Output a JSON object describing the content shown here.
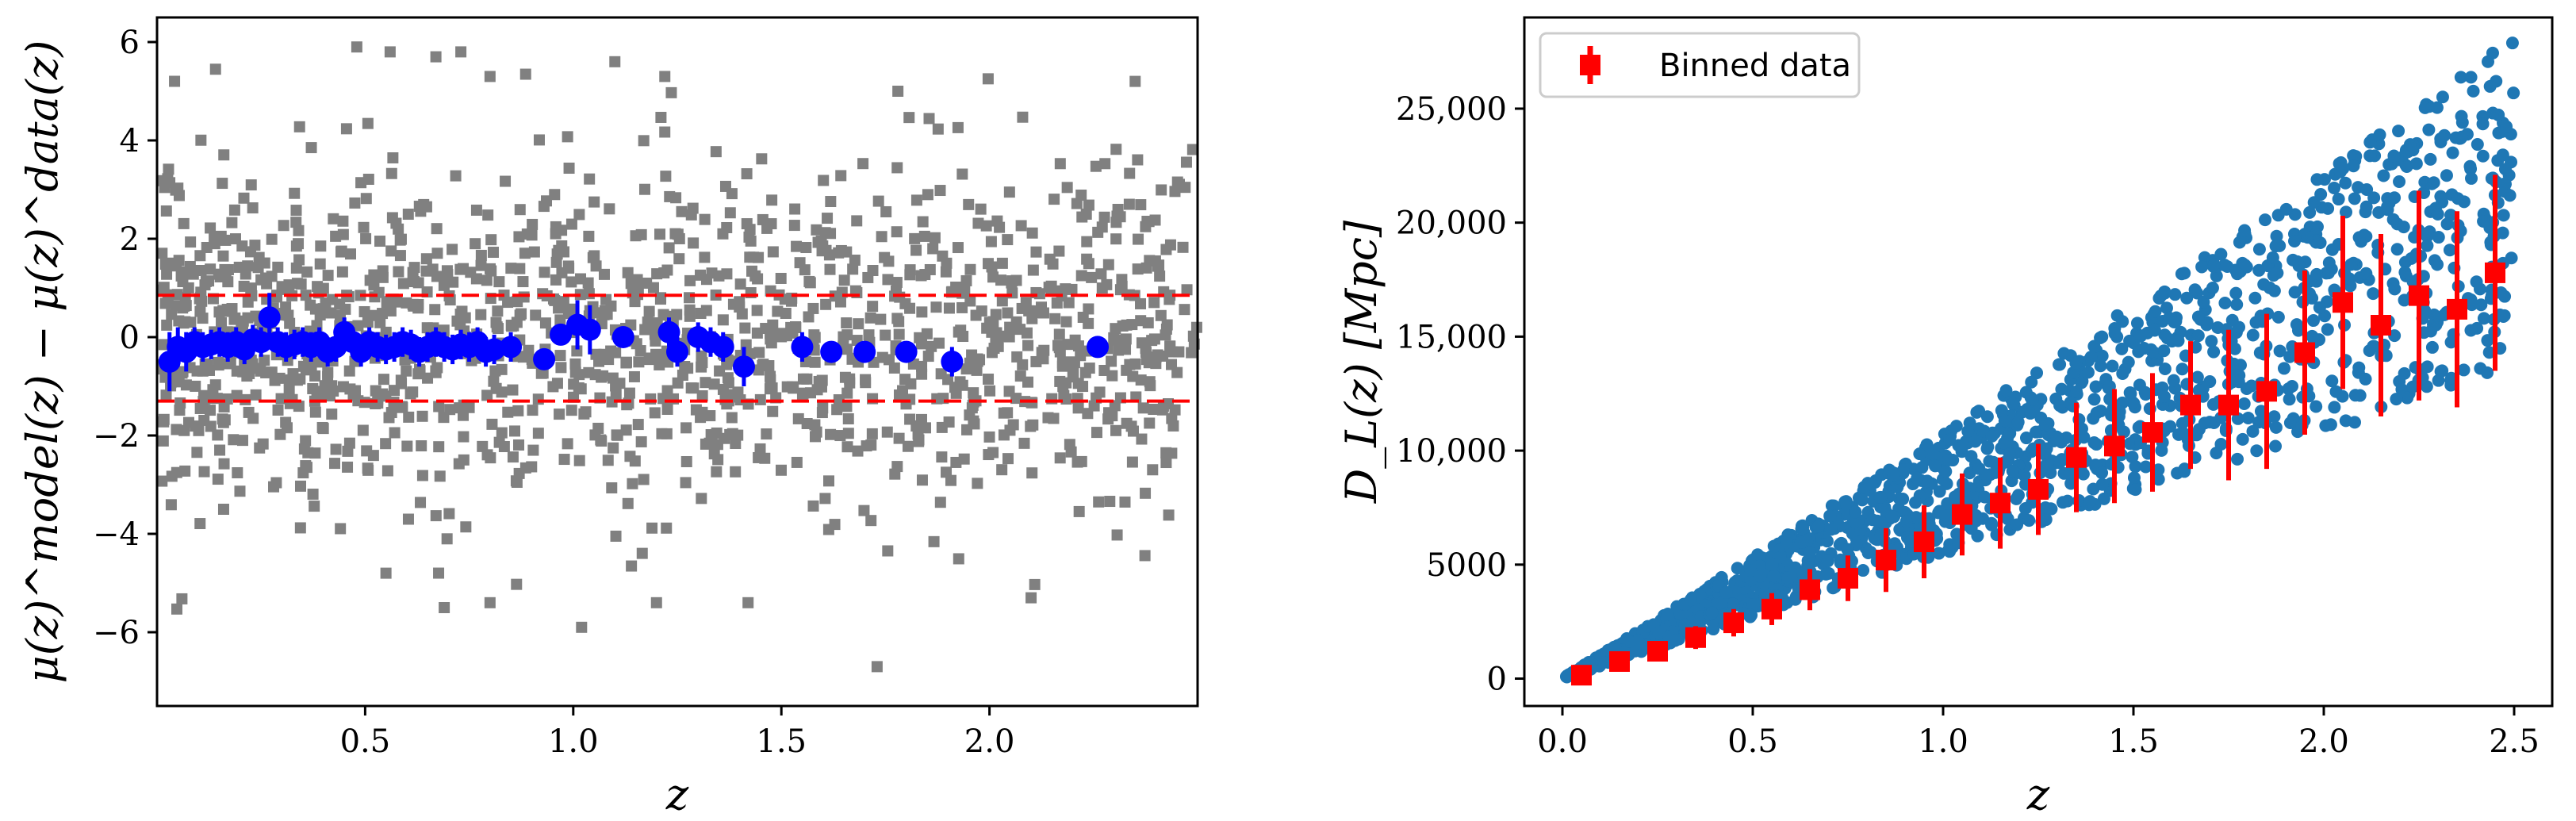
{
  "colors": {
    "gray": "#808080",
    "blue": "#0000ff",
    "red": "#ff0000",
    "steel": "#1f77b4",
    "axis": "#000000"
  },
  "chart_data": [
    {
      "type": "scatter",
      "title": "",
      "xlabel": "z",
      "ylabel": "μ(z)^model(z) − μ(z)^data(z)",
      "xlim": [
        0.0,
        2.5
      ],
      "ylim": [
        -7.5,
        6.5
      ],
      "xticks": [
        0.5,
        1.0,
        1.5,
        2.0
      ],
      "xtick_labels": [
        "0.5",
        "1.0",
        "1.5",
        "2.0"
      ],
      "yticks": [
        -6,
        -4,
        -2,
        0,
        2,
        4,
        6
      ],
      "ytick_labels": [
        "−6",
        "−4",
        "−2",
        "0",
        "2",
        "4",
        "6"
      ],
      "hlines": [
        0.85,
        -1.3
      ],
      "grid": false,
      "scatter_summary": {
        "approx_points": 1500,
        "x_range": [
          0.0,
          2.5
        ],
        "y_spread": 1.6
      },
      "scatter_outliers": [
        [
          0.48,
          5.9
        ],
        [
          0.56,
          5.8
        ],
        [
          0.67,
          5.7
        ],
        [
          0.73,
          5.8
        ],
        [
          0.8,
          5.3
        ],
        [
          1.1,
          5.6
        ],
        [
          1.22,
          5.3
        ],
        [
          1.78,
          5.0
        ],
        [
          2.35,
          5.2
        ],
        [
          0.69,
          -5.5
        ],
        [
          0.8,
          -5.4
        ],
        [
          1.02,
          -5.9
        ],
        [
          1.2,
          -5.4
        ],
        [
          1.42,
          -5.4
        ],
        [
          1.73,
          -6.7
        ],
        [
          0.55,
          -4.8
        ],
        [
          0.16,
          -3.5
        ],
        [
          2.1,
          -5.3
        ],
        [
          0.1,
          -1.9
        ]
      ],
      "binned_x": [
        0.03,
        0.05,
        0.07,
        0.09,
        0.11,
        0.13,
        0.15,
        0.17,
        0.19,
        0.21,
        0.23,
        0.25,
        0.27,
        0.29,
        0.31,
        0.33,
        0.35,
        0.37,
        0.39,
        0.41,
        0.43,
        0.45,
        0.47,
        0.49,
        0.51,
        0.53,
        0.55,
        0.57,
        0.59,
        0.61,
        0.63,
        0.65,
        0.67,
        0.69,
        0.71,
        0.73,
        0.75,
        0.77,
        0.79,
        0.81,
        0.85,
        0.93,
        0.97,
        1.01,
        1.04,
        1.12,
        1.23,
        1.25,
        1.3,
        1.33,
        1.36,
        1.41,
        1.55,
        1.62,
        1.7,
        1.8,
        1.91,
        2.26
      ],
      "binned_y": [
        -0.5,
        -0.2,
        -0.3,
        -0.1,
        -0.2,
        -0.15,
        -0.1,
        -0.2,
        -0.1,
        -0.25,
        -0.05,
        -0.1,
        0.4,
        -0.1,
        -0.2,
        -0.15,
        -0.1,
        -0.2,
        -0.1,
        -0.3,
        -0.2,
        0.1,
        -0.1,
        -0.3,
        -0.1,
        -0.2,
        -0.25,
        -0.2,
        -0.1,
        -0.15,
        -0.3,
        -0.2,
        -0.1,
        -0.2,
        -0.25,
        -0.15,
        -0.2,
        -0.1,
        -0.3,
        -0.25,
        -0.2,
        -0.45,
        0.05,
        0.25,
        0.15,
        0.0,
        0.1,
        -0.3,
        0.0,
        -0.1,
        -0.2,
        -0.6,
        -0.2,
        -0.3,
        -0.3,
        -0.3,
        -0.5,
        -0.2
      ],
      "binned_err": [
        0.6,
        0.4,
        0.4,
        0.3,
        0.3,
        0.3,
        0.3,
        0.3,
        0.3,
        0.3,
        0.3,
        0.3,
        0.5,
        0.3,
        0.3,
        0.3,
        0.3,
        0.3,
        0.3,
        0.3,
        0.3,
        0.3,
        0.3,
        0.3,
        0.3,
        0.3,
        0.3,
        0.3,
        0.3,
        0.3,
        0.3,
        0.3,
        0.3,
        0.3,
        0.3,
        0.3,
        0.3,
        0.3,
        0.3,
        0.3,
        0.3,
        0.2,
        0.2,
        0.5,
        0.5,
        0.2,
        0.3,
        0.3,
        0.3,
        0.3,
        0.3,
        0.4,
        0.3,
        0.2,
        0.2,
        0.2,
        0.3,
        0.2
      ]
    },
    {
      "type": "scatter",
      "title": "",
      "xlabel": "z",
      "ylabel_main": "D_L(z)",
      "ylabel_unit": "[Mpc]",
      "xlim": [
        -0.1,
        2.6
      ],
      "ylim": [
        -1200,
        29000
      ],
      "xticks": [
        0.0,
        0.5,
        1.0,
        1.5,
        2.0,
        2.5
      ],
      "xtick_labels": [
        "0.0",
        "0.5",
        "1.0",
        "1.5",
        "2.0",
        "2.5"
      ],
      "yticks": [
        0,
        5000,
        10000,
        15000,
        20000,
        25000
      ],
      "ytick_labels": [
        "0",
        "5000",
        "10,000",
        "15,000",
        "20,000",
        "25,000"
      ],
      "grid": false,
      "legend": {
        "position": "top-left",
        "label": "Binned data"
      },
      "scatter_summary": {
        "approx_points": 1500,
        "x_range": [
          0.0,
          2.5
        ],
        "lower_envelope_slope": 5400,
        "upper_envelope_slope": 10500
      },
      "binned": {
        "x": [
          0.05,
          0.15,
          0.25,
          0.35,
          0.45,
          0.55,
          0.65,
          0.75,
          0.85,
          0.95,
          1.05,
          1.15,
          1.25,
          1.35,
          1.45,
          1.55,
          1.65,
          1.75,
          1.85,
          1.95,
          2.05,
          2.15,
          2.25,
          2.35,
          2.45
        ],
        "y": [
          150,
          750,
          1200,
          1800,
          2450,
          3050,
          3900,
          4400,
          5200,
          6000,
          7200,
          7700,
          8300,
          9700,
          10200,
          10800,
          12000,
          12000,
          12600,
          14300,
          16500,
          15500,
          16800,
          16200,
          17800
        ],
        "err": [
          200,
          300,
          400,
          500,
          600,
          700,
          900,
          1000,
          1400,
          1600,
          1800,
          2000,
          2000,
          2400,
          2500,
          2600,
          2800,
          3300,
          3400,
          3600,
          3800,
          4000,
          4600,
          4300,
          4300
        ]
      }
    }
  ]
}
